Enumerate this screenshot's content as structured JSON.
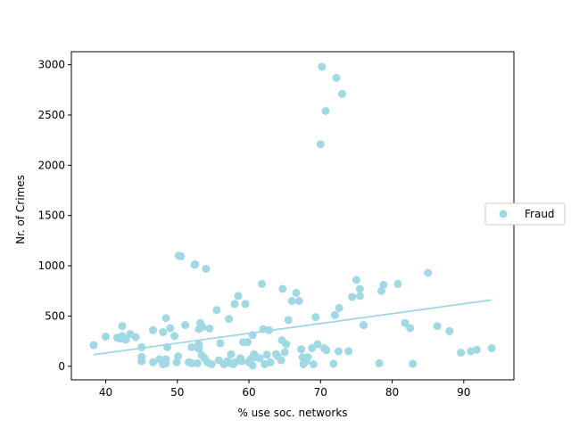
{
  "chart_data": {
    "type": "scatter",
    "title": "",
    "xlabel": "% use soc. networks",
    "ylabel": "Nr. of Crimes",
    "xlim": [
      35.2,
      97.0
    ],
    "ylim": [
      -135,
      3130
    ],
    "x_ticks": [
      40,
      50,
      60,
      70,
      80,
      90
    ],
    "y_ticks": [
      0,
      500,
      1000,
      1500,
      2000,
      2500,
      3000
    ],
    "grid": false,
    "legend_position": "right",
    "series": [
      {
        "name": "Fraud",
        "type": "scatter",
        "color": "#a0d8e4",
        "points": [
          [
            38.3,
            210
          ],
          [
            40.0,
            295
          ],
          [
            41.6,
            285
          ],
          [
            42.0,
            275
          ],
          [
            42.3,
            300
          ],
          [
            42.3,
            400
          ],
          [
            42.8,
            265
          ],
          [
            43.4,
            320
          ],
          [
            44.2,
            290
          ],
          [
            45.0,
            190
          ],
          [
            45.0,
            95
          ],
          [
            45.0,
            50
          ],
          [
            46.6,
            360
          ],
          [
            46.6,
            40
          ],
          [
            47.5,
            70
          ],
          [
            48.0,
            340
          ],
          [
            48.0,
            20
          ],
          [
            48.4,
            480
          ],
          [
            48.4,
            70
          ],
          [
            48.4,
            30
          ],
          [
            48.6,
            190
          ],
          [
            49.0,
            380
          ],
          [
            49.6,
            300
          ],
          [
            49.9,
            40
          ],
          [
            50.1,
            100
          ],
          [
            50.2,
            1100
          ],
          [
            50.5,
            1095
          ],
          [
            51.1,
            410
          ],
          [
            51.6,
            40
          ],
          [
            52.0,
            30
          ],
          [
            52.0,
            190
          ],
          [
            52.4,
            1010
          ],
          [
            52.5,
            1015
          ],
          [
            52.8,
            30
          ],
          [
            53.0,
            175
          ],
          [
            53.0,
            370
          ],
          [
            53.0,
            220
          ],
          [
            53.2,
            430
          ],
          [
            53.4,
            110
          ],
          [
            53.5,
            390
          ],
          [
            53.8,
            80
          ],
          [
            54.0,
            970
          ],
          [
            54.2,
            40
          ],
          [
            54.5,
            375
          ],
          [
            54.8,
            20
          ],
          [
            55.5,
            560
          ],
          [
            55.8,
            60
          ],
          [
            56.0,
            230
          ],
          [
            56.5,
            20
          ],
          [
            57.0,
            50
          ],
          [
            57.2,
            470
          ],
          [
            57.4,
            30
          ],
          [
            57.5,
            120
          ],
          [
            57.8,
            20
          ],
          [
            58.0,
            620
          ],
          [
            58.1,
            40
          ],
          [
            58.5,
            700
          ],
          [
            58.8,
            80
          ],
          [
            59.0,
            50
          ],
          [
            59.2,
            240
          ],
          [
            59.5,
            620
          ],
          [
            59.8,
            240
          ],
          [
            60.0,
            40
          ],
          [
            60.2,
            70
          ],
          [
            60.5,
            310
          ],
          [
            60.5,
            10
          ],
          [
            60.7,
            120
          ],
          [
            61.0,
            90
          ],
          [
            61.5,
            80
          ],
          [
            61.8,
            820
          ],
          [
            62.0,
            370
          ],
          [
            62.2,
            20
          ],
          [
            62.5,
            115
          ],
          [
            62.8,
            360
          ],
          [
            63.0,
            40
          ],
          [
            63.8,
            120
          ],
          [
            64.0,
            100
          ],
          [
            64.5,
            60
          ],
          [
            64.6,
            260
          ],
          [
            64.7,
            770
          ],
          [
            65.0,
            140
          ],
          [
            65.2,
            220
          ],
          [
            65.5,
            460
          ],
          [
            66.0,
            650
          ],
          [
            66.6,
            730
          ],
          [
            67.0,
            650
          ],
          [
            67.3,
            170
          ],
          [
            67.5,
            90
          ],
          [
            67.6,
            20
          ],
          [
            68.0,
            50
          ],
          [
            68.2,
            90
          ],
          [
            68.8,
            180
          ],
          [
            69.0,
            20
          ],
          [
            69.3,
            490
          ],
          [
            69.6,
            220
          ],
          [
            70.0,
            2210
          ],
          [
            70.2,
            2980
          ],
          [
            70.5,
            180
          ],
          [
            70.7,
            2540
          ],
          [
            70.8,
            160
          ],
          [
            71.8,
            25
          ],
          [
            72.0,
            510
          ],
          [
            72.2,
            2870
          ],
          [
            72.5,
            150
          ],
          [
            72.6,
            580
          ],
          [
            73.0,
            2710
          ],
          [
            73.9,
            150
          ],
          [
            74.4,
            690
          ],
          [
            75.0,
            860
          ],
          [
            75.5,
            770
          ],
          [
            75.5,
            700
          ],
          [
            76.0,
            410
          ],
          [
            78.2,
            30
          ],
          [
            78.5,
            750
          ],
          [
            78.8,
            810
          ],
          [
            80.8,
            820
          ],
          [
            81.8,
            430
          ],
          [
            82.5,
            380
          ],
          [
            82.9,
            25
          ],
          [
            85.0,
            930
          ],
          [
            86.3,
            400
          ],
          [
            88.0,
            350
          ],
          [
            89.6,
            135
          ],
          [
            91.0,
            150
          ],
          [
            91.8,
            165
          ],
          [
            93.9,
            180
          ]
        ]
      },
      {
        "name": "trend",
        "type": "line",
        "color": "#a0d8e4",
        "x": [
          38.3,
          93.9
        ],
        "y": [
          115,
          660
        ]
      }
    ],
    "legend": [
      {
        "label": "Fraud",
        "marker": "circle",
        "color": "#a0d8e4"
      }
    ]
  }
}
